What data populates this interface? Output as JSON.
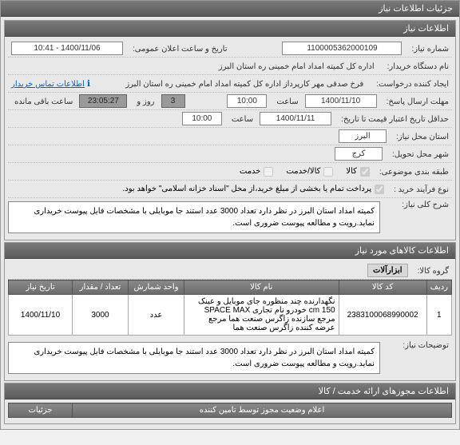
{
  "main_panel_title": "جزئیات اطلاعات نیاز",
  "info_panel_title": "اطلاعات نیاز",
  "fields": {
    "need_number_label": "شماره نیاز:",
    "need_number": "1100005362000109",
    "public_date_label": "تاریخ و ساعت اعلان عمومی:",
    "public_date": "1400/11/06 - 10:41",
    "buyer_org_label": "نام دستگاه خریدار:",
    "buyer_org": "اداره کل کمیته امداد امام خمینی  ره  استان البرز",
    "requester_label": "ایجاد کننده درخواست:",
    "requester": "فرخ صدقی مهر کارپرداز اداره کل کمیته امداد امام خمینی  ره  استان البرز",
    "contact_link": "اطلاعات تماس خریدار",
    "send_deadline_label": "مهلت ارسال پاسخ:",
    "send_deadline_date": "1400/11/10",
    "time_label": "ساعت",
    "send_deadline_time": "10:00",
    "day_label": "روز و",
    "days_remaining": "3",
    "remaining_label": "ساعت باقی مانده",
    "remaining_time": "23:05:27",
    "price_min_label": "حداقل تاریخ اعتبار قیمت تا تاریخ:",
    "price_date": "1400/11/11",
    "price_time": "10:00",
    "need_province_label": "استان محل نیاز:",
    "need_province": "البرز",
    "delivery_city_label": "شهر محل تحویل:",
    "delivery_city": "کرج",
    "subject_class_label": "طبقه بندی موضوعی:",
    "cb_goods": "کالا",
    "cb_services": "کالا/خدمت",
    "cb_service": "خدمت",
    "buy_process_label": "نوع فرآیند خرید :",
    "buy_process_note": "پرداخت تمام یا بخشی از مبلغ خرید،از محل \"اسناد خزانه اسلامی\" خواهد بود.",
    "need_desc_label": "شرح کلی نیاز:",
    "need_desc": "کمیته امداد استان البرز در نظر دارد تعداد 3000 عدد استند جا موبایلی با مشخصات فایل پیوست خریداری نماید.رویت و مطالعه پیوست ضروری است."
  },
  "goods_panel_title": "اطلاعات کالاهای مورد نیاز",
  "goods_group_label": "گروه کالا:",
  "goods_group": "ابزارآلات",
  "table": {
    "headers": [
      "ردیف",
      "کد کالا",
      "نام کالا",
      "واحد شمارش",
      "تعداد / مقدار",
      "تاریخ نیاز"
    ],
    "rows": [
      [
        "1",
        "2383100068990002",
        "نگهدارنده چند منظوره جای موبایل و عینک cm 150 خودرو نام تجاری SPACE MAX مرجع سازنده زاگرس صنعت هما مرجع عرضه کننده زاگرس صنعت هما",
        "عدد",
        "3000",
        "1400/11/10"
      ]
    ]
  },
  "need_notes_label": "توضیحات نیاز:",
  "need_notes": "کمیته امداد استان البرز در نظر دارد تعداد 3000 عدد استند جا موبایلی با مشخصات فایل پیوست خریداری نماید.رویت و مطالعه پیوست ضروری است.",
  "license_panel_title": "اطلاعات مجوزهای ارائه خدمت / کالا",
  "inner_table": {
    "title1": "اعلام وضعیت مجوز توسط تامین کننده",
    "title2": "جزئیات"
  },
  "colors": {
    "header_bg_start": "#7a7a7a",
    "header_bg_end": "#5a5a5a",
    "panel_bg": "#e8e8e8",
    "border": "#999",
    "dark_box": "#9a9a9a",
    "link": "#0066cc"
  }
}
